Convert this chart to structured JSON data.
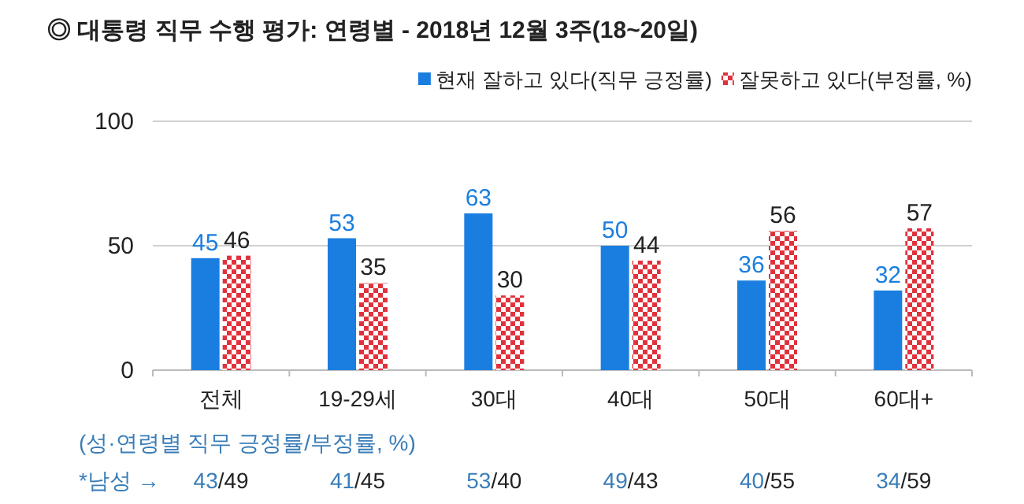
{
  "chart_data": {
    "type": "bar",
    "title": "◎  대통령 직무 수행 평가: 연령별 - 2018년 12월 3주(18~20일)",
    "categories": [
      "전체",
      "19-29세",
      "30대",
      "40대",
      "50대",
      "60대+"
    ],
    "series": [
      {
        "name": "현재 잘하고 있다(직무 긍정률)",
        "color": "#1a7ee0",
        "values": [
          45,
          53,
          63,
          50,
          36,
          32
        ]
      },
      {
        "name": "잘못하고 있다(부정률, %)",
        "color": "#e0323c",
        "values": [
          46,
          35,
          30,
          44,
          56,
          57
        ]
      }
    ],
    "ylim": [
      0,
      100
    ],
    "yticks": [
      0,
      50,
      100
    ],
    "grid": "y",
    "legend": "top right",
    "data_labels": true,
    "annotations": [
      "(성·연령별 직무 긍정률/부정률, %)",
      "*남성 →",
      "43/49",
      "41/45",
      "53/40",
      "49/43",
      "40/55",
      "34/59"
    ]
  }
}
